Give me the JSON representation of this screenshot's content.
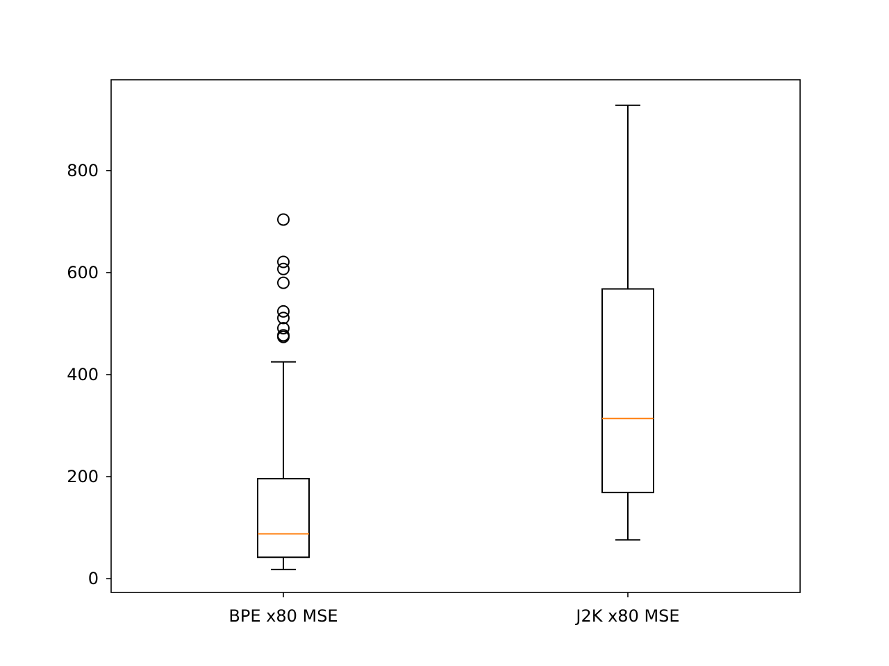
{
  "chart_data": {
    "type": "box",
    "title": "",
    "xlabel": "",
    "ylabel": "",
    "ylim": [
      -27,
      978
    ],
    "yticks": [
      0,
      200,
      400,
      600,
      800
    ],
    "grid": false,
    "categories": [
      "BPE x80 MSE",
      "J2K x80 MSE"
    ],
    "boxes": [
      {
        "label": "BPE x80 MSE",
        "whisker_low": 18,
        "q1": 42,
        "median": 88,
        "q3": 196,
        "whisker_high": 425,
        "outliers": [
          474,
          477,
          491,
          511,
          524,
          580,
          607,
          621,
          704
        ]
      },
      {
        "label": "J2K x80 MSE",
        "whisker_low": 76,
        "q1": 169,
        "median": 314,
        "q3": 568,
        "whisker_high": 928,
        "outliers": []
      }
    ],
    "colors": {
      "box": "#000000",
      "median": "#ff7f0e"
    }
  }
}
